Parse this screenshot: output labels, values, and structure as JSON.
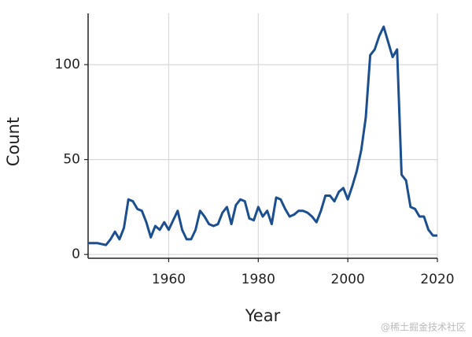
{
  "chart_data": {
    "type": "line",
    "x_label": "Year",
    "y_label": "Count",
    "x": [
      1942,
      1943,
      1944,
      1945,
      1946,
      1947,
      1948,
      1949,
      1950,
      1951,
      1952,
      1953,
      1954,
      1955,
      1956,
      1957,
      1958,
      1959,
      1960,
      1961,
      1962,
      1963,
      1964,
      1965,
      1966,
      1967,
      1968,
      1969,
      1970,
      1971,
      1972,
      1973,
      1974,
      1975,
      1976,
      1977,
      1978,
      1979,
      1980,
      1981,
      1982,
      1983,
      1984,
      1985,
      1986,
      1987,
      1988,
      1989,
      1990,
      1991,
      1992,
      1993,
      1994,
      1995,
      1996,
      1997,
      1998,
      1999,
      2000,
      2001,
      2002,
      2003,
      2004,
      2005,
      2006,
      2007,
      2008,
      2009,
      2010,
      2011,
      2012,
      2013,
      2014,
      2015,
      2016,
      2017,
      2018,
      2019,
      2020
    ],
    "series": [
      {
        "name": "Count",
        "color": "#1c4f8f",
        "values": [
          6,
          6,
          6,
          5.5,
          5,
          8,
          12,
          8,
          14,
          29,
          28,
          24,
          23,
          17,
          9,
          15,
          13,
          17,
          13,
          18,
          23,
          13,
          8,
          8,
          13,
          23,
          20,
          16,
          15,
          16,
          22,
          25,
          16,
          26,
          29,
          28,
          19,
          18,
          25,
          20,
          23,
          16,
          30,
          29,
          24,
          20,
          21,
          23,
          23,
          22,
          20,
          17,
          23,
          31,
          31,
          28,
          33,
          35,
          29,
          36,
          44,
          55,
          72,
          105,
          108,
          115,
          120,
          112,
          104,
          108,
          42,
          39,
          25,
          24,
          20,
          20,
          13,
          10,
          10
        ]
      }
    ],
    "xlim": [
      1942,
      2020
    ],
    "ylim": [
      -2,
      127
    ],
    "xticks": [
      1960,
      1980,
      2000,
      2020
    ],
    "yticks": [
      0,
      50,
      100
    ],
    "grid": true,
    "watermark": "@稀土掘金技术社区"
  }
}
